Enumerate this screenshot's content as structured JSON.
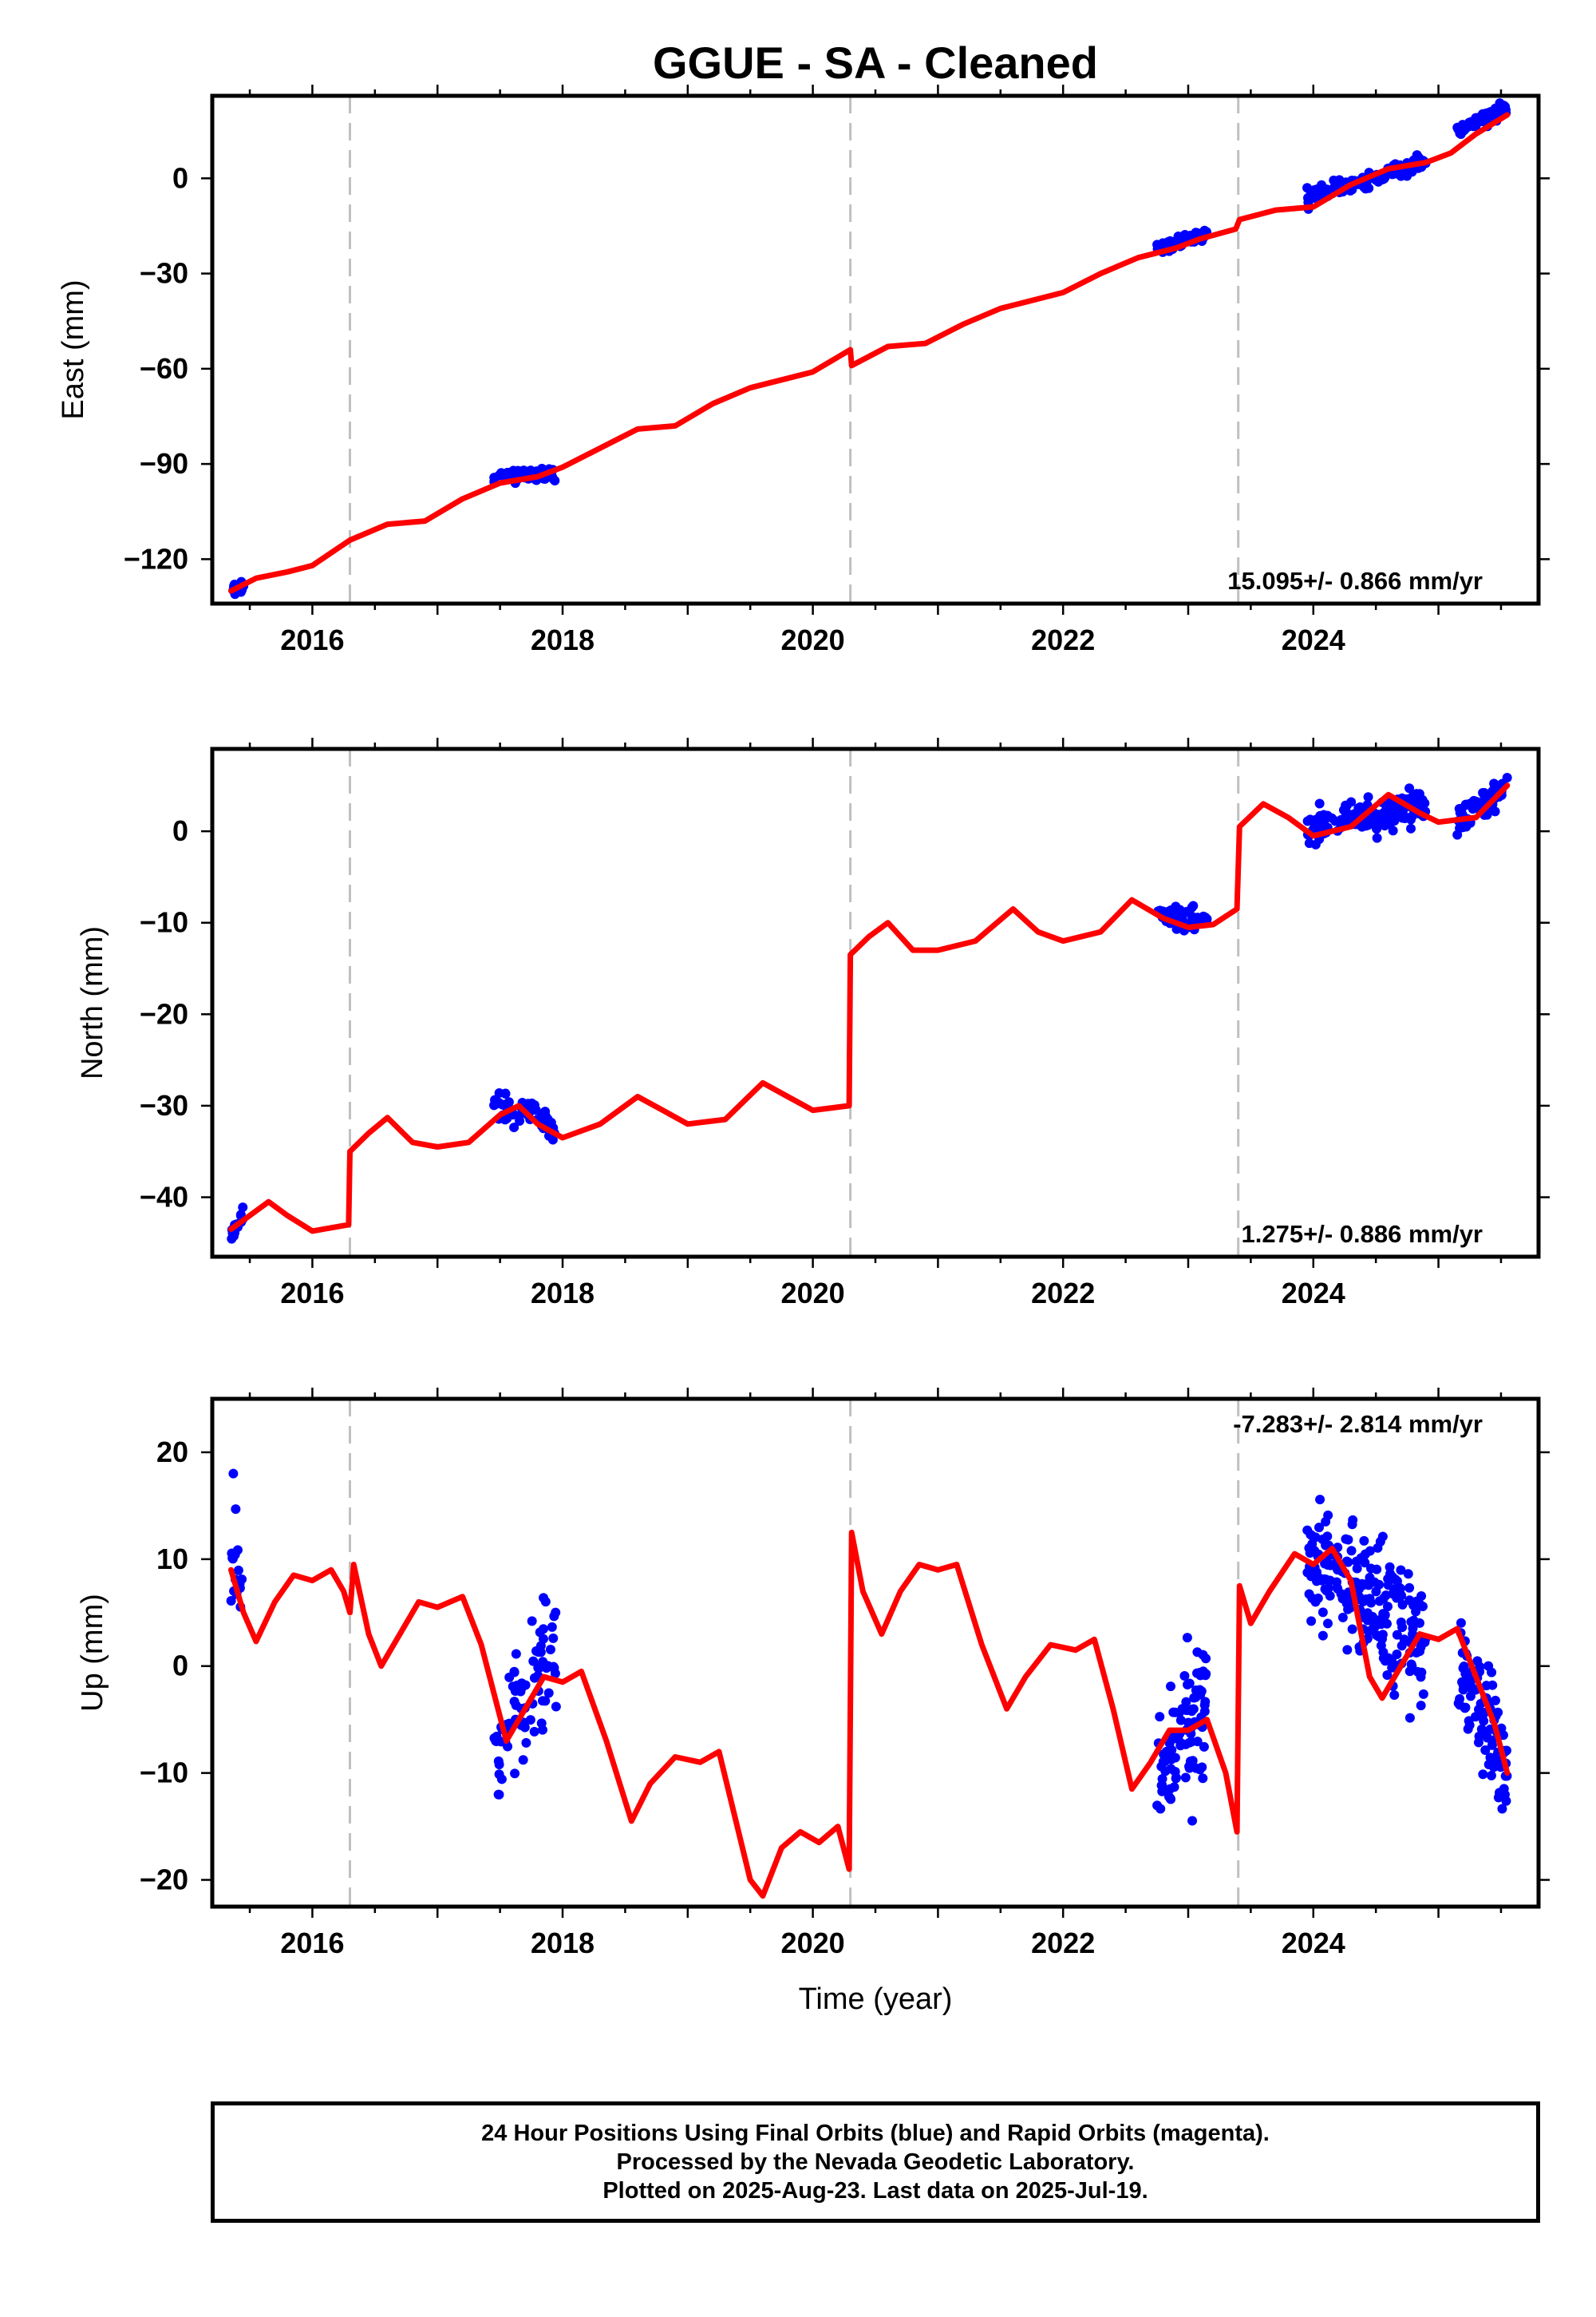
{
  "colors": {
    "data_points": "#0000ff",
    "model_line": "#ff0000",
    "event_lines": "#c0c0c0",
    "frame": "#000000"
  },
  "chart_data": [
    {
      "type": "scatter",
      "title": "GGUE  - SA - Cleaned",
      "xlabel": "",
      "ylabel": "East (mm)",
      "xlim": [
        2015.2,
        2025.8
      ],
      "ylim": [
        -134,
        26
      ],
      "x_ticks": [
        "2016",
        "2018",
        "2020",
        "2022",
        "2024"
      ],
      "y_ticks": [
        "-120",
        "-90",
        "-60",
        "-30",
        "0"
      ],
      "event_lines_x": [
        2016.3,
        2020.3,
        2023.4
      ],
      "rate_annotation": "15.095+/- 0.866 mm/yr",
      "series": [
        {
          "kind": "points",
          "clusters": [
            {
              "x_range": [
                2015.35,
                2015.45
              ],
              "center": [
                -130,
                -128
              ],
              "spread": 2.2,
              "n": 14
            },
            {
              "x_range": [
                2017.45,
                2017.95
              ],
              "center": [
                -94,
                -93
              ],
              "spread": 1.8,
              "n": 60
            },
            {
              "x_range": [
                2022.75,
                2023.15
              ],
              "center": [
                -23,
                -17
              ],
              "spread": 1.8,
              "n": 60
            },
            {
              "x_range": [
                2023.95,
                2024.9
              ],
              "center": [
                -6,
                5
              ],
              "spread": 2.0,
              "n": 150
            },
            {
              "x_range": [
                2025.15,
                2025.55
              ],
              "center": [
                15,
                22
              ],
              "spread": 1.8,
              "n": 70
            }
          ]
        },
        {
          "kind": "line",
          "points": [
            [
              2015.35,
              -130
            ],
            [
              2015.55,
              -126
            ],
            [
              2015.8,
              -124
            ],
            [
              2016.0,
              -122
            ],
            [
              2016.3,
              -114
            ],
            [
              2016.6,
              -109
            ],
            [
              2016.9,
              -108
            ],
            [
              2017.2,
              -101
            ],
            [
              2017.5,
              -96
            ],
            [
              2017.8,
              -94
            ],
            [
              2018.0,
              -91
            ],
            [
              2018.3,
              -85
            ],
            [
              2018.6,
              -79
            ],
            [
              2018.9,
              -78
            ],
            [
              2019.2,
              -71
            ],
            [
              2019.5,
              -66
            ],
            [
              2019.8,
              -63
            ],
            [
              2020.0,
              -61
            ],
            [
              2020.3,
              -54
            ],
            [
              2020.31,
              -59
            ],
            [
              2020.6,
              -53
            ],
            [
              2020.9,
              -52
            ],
            [
              2021.2,
              -46
            ],
            [
              2021.5,
              -41
            ],
            [
              2021.8,
              -38
            ],
            [
              2022.0,
              -36
            ],
            [
              2022.3,
              -30
            ],
            [
              2022.6,
              -25
            ],
            [
              2022.9,
              -22
            ],
            [
              2023.1,
              -19
            ],
            [
              2023.38,
              -16
            ],
            [
              2023.41,
              -13
            ],
            [
              2023.7,
              -10
            ],
            [
              2024.0,
              -9
            ],
            [
              2024.3,
              -2
            ],
            [
              2024.6,
              3
            ],
            [
              2024.9,
              5
            ],
            [
              2025.1,
              8
            ],
            [
              2025.3,
              14
            ],
            [
              2025.55,
              20
            ]
          ]
        }
      ]
    },
    {
      "type": "scatter",
      "title": "",
      "xlabel": "",
      "ylabel": "North (mm)",
      "xlim": [
        2015.2,
        2025.8
      ],
      "ylim": [
        -46.5,
        9
      ],
      "x_ticks": [
        "2016",
        "2018",
        "2020",
        "2022",
        "2024"
      ],
      "y_ticks": [
        "-40",
        "-30",
        "-20",
        "-10",
        "0"
      ],
      "event_lines_x": [
        2016.3,
        2020.3,
        2023.4
      ],
      "rate_annotation": "1.275+/- 0.886 mm/yr",
      "series": [
        {
          "kind": "points",
          "clusters": [
            {
              "x_range": [
                2015.35,
                2015.45
              ],
              "center": [
                -44,
                -42
              ],
              "spread": 1.2,
              "n": 14
            },
            {
              "x_range": [
                2017.45,
                2017.95
              ],
              "center": [
                -30,
                -32
              ],
              "spread": 1.3,
              "n": 60
            },
            {
              "x_range": [
                2022.75,
                2023.15
              ],
              "center": [
                -9,
                -10
              ],
              "spread": 1.3,
              "n": 60
            },
            {
              "x_range": [
                2023.95,
                2024.9
              ],
              "center": [
                0,
                3
              ],
              "spread": 1.6,
              "n": 150
            },
            {
              "x_range": [
                2025.15,
                2025.55
              ],
              "center": [
                1,
                5
              ],
              "spread": 1.4,
              "n": 70
            }
          ]
        },
        {
          "kind": "line",
          "points": [
            [
              2015.35,
              -43.5
            ],
            [
              2015.5,
              -42
            ],
            [
              2015.65,
              -40.5
            ],
            [
              2015.8,
              -42
            ],
            [
              2016.0,
              -43.7
            ],
            [
              2016.29,
              -43
            ],
            [
              2016.3,
              -35
            ],
            [
              2016.45,
              -33
            ],
            [
              2016.6,
              -31.3
            ],
            [
              2016.8,
              -34
            ],
            [
              2017.0,
              -34.5
            ],
            [
              2017.25,
              -34
            ],
            [
              2017.5,
              -31
            ],
            [
              2017.65,
              -30
            ],
            [
              2017.8,
              -32
            ],
            [
              2018.0,
              -33.5
            ],
            [
              2018.3,
              -32
            ],
            [
              2018.6,
              -29
            ],
            [
              2018.8,
              -30.5
            ],
            [
              2019.0,
              -32
            ],
            [
              2019.3,
              -31.5
            ],
            [
              2019.6,
              -27.5
            ],
            [
              2019.8,
              -29
            ],
            [
              2020.0,
              -30.5
            ],
            [
              2020.29,
              -30
            ],
            [
              2020.3,
              -13.5
            ],
            [
              2020.45,
              -11.5
            ],
            [
              2020.6,
              -10
            ],
            [
              2020.8,
              -13
            ],
            [
              2021.0,
              -13
            ],
            [
              2021.3,
              -12
            ],
            [
              2021.6,
              -8.5
            ],
            [
              2021.8,
              -11
            ],
            [
              2022.0,
              -12
            ],
            [
              2022.3,
              -11
            ],
            [
              2022.55,
              -7.5
            ],
            [
              2022.8,
              -9.5
            ],
            [
              2023.0,
              -10.5
            ],
            [
              2023.2,
              -10.2
            ],
            [
              2023.39,
              -8.5
            ],
            [
              2023.41,
              0.5
            ],
            [
              2023.6,
              3
            ],
            [
              2023.8,
              1.5
            ],
            [
              2024.0,
              -0.5
            ],
            [
              2024.3,
              0.5
            ],
            [
              2024.6,
              4
            ],
            [
              2024.85,
              2
            ],
            [
              2025.0,
              1
            ],
            [
              2025.3,
              1.5
            ],
            [
              2025.55,
              5
            ]
          ]
        }
      ]
    },
    {
      "type": "scatter",
      "title": "",
      "xlabel": "Time (year)",
      "ylabel": "Up (mm)",
      "xlim": [
        2015.2,
        2025.8
      ],
      "ylim": [
        -22.5,
        25
      ],
      "x_ticks": [
        "2016",
        "2018",
        "2020",
        "2022",
        "2024"
      ],
      "y_ticks": [
        "-20",
        "-10",
        "0",
        "10",
        "20"
      ],
      "event_lines_x": [
        2016.3,
        2020.3,
        2023.4
      ],
      "rate_annotation": "-7.283+/- 2.814 mm/yr",
      "series": [
        {
          "kind": "points",
          "clusters": [
            {
              "x_range": [
                2015.35,
                2015.45
              ],
              "center": [
                9,
                6
              ],
              "spread": 5.5,
              "n": 16
            },
            {
              "x_range": [
                2017.45,
                2017.95
              ],
              "center": [
                -8,
                2
              ],
              "spread": 5.0,
              "n": 80
            },
            {
              "x_range": [
                2022.75,
                2023.15
              ],
              "center": [
                -10,
                -3
              ],
              "spread": 6.0,
              "n": 100
            },
            {
              "x_range": [
                2023.95,
                2024.9
              ],
              "center": [
                10,
                2
              ],
              "spread": 5.5,
              "n": 220
            },
            {
              "x_range": [
                2025.15,
                2025.55
              ],
              "center": [
                0,
                -10
              ],
              "spread": 5.0,
              "n": 90
            }
          ]
        },
        {
          "kind": "line",
          "points": [
            [
              2015.35,
              9
            ],
            [
              2015.45,
              5
            ],
            [
              2015.55,
              2.3
            ],
            [
              2015.7,
              6
            ],
            [
              2015.85,
              8.5
            ],
            [
              2016.0,
              8
            ],
            [
              2016.15,
              9
            ],
            [
              2016.25,
              7
            ],
            [
              2016.3,
              5
            ],
            [
              2016.33,
              9.5
            ],
            [
              2016.45,
              3
            ],
            [
              2016.55,
              0
            ],
            [
              2016.65,
              2
            ],
            [
              2016.85,
              6
            ],
            [
              2017.0,
              5.5
            ],
            [
              2017.2,
              6.5
            ],
            [
              2017.35,
              2
            ],
            [
              2017.55,
              -7
            ],
            [
              2017.7,
              -4
            ],
            [
              2017.85,
              -1
            ],
            [
              2018.0,
              -1.5
            ],
            [
              2018.15,
              -0.5
            ],
            [
              2018.35,
              -7
            ],
            [
              2018.55,
              -14.5
            ],
            [
              2018.7,
              -11
            ],
            [
              2018.9,
              -8.5
            ],
            [
              2019.1,
              -9
            ],
            [
              2019.25,
              -8
            ],
            [
              2019.5,
              -20
            ],
            [
              2019.6,
              -21.5
            ],
            [
              2019.75,
              -17
            ],
            [
              2019.9,
              -15.5
            ],
            [
              2020.05,
              -16.5
            ],
            [
              2020.2,
              -15
            ],
            [
              2020.29,
              -19
            ],
            [
              2020.31,
              12.5
            ],
            [
              2020.4,
              7
            ],
            [
              2020.55,
              3
            ],
            [
              2020.7,
              7
            ],
            [
              2020.85,
              9.5
            ],
            [
              2021.0,
              9
            ],
            [
              2021.15,
              9.5
            ],
            [
              2021.35,
              2
            ],
            [
              2021.55,
              -4
            ],
            [
              2021.7,
              -1
            ],
            [
              2021.9,
              2
            ],
            [
              2022.1,
              1.5
            ],
            [
              2022.25,
              2.5
            ],
            [
              2022.4,
              -4
            ],
            [
              2022.55,
              -11.5
            ],
            [
              2022.7,
              -9
            ],
            [
              2022.85,
              -6
            ],
            [
              2023.0,
              -6
            ],
            [
              2023.15,
              -5
            ],
            [
              2023.3,
              -10
            ],
            [
              2023.39,
              -15.5
            ],
            [
              2023.41,
              7.5
            ],
            [
              2023.5,
              4
            ],
            [
              2023.65,
              7
            ],
            [
              2023.85,
              10.5
            ],
            [
              2024.0,
              9.5
            ],
            [
              2024.15,
              11
            ],
            [
              2024.3,
              8
            ],
            [
              2024.45,
              -1
            ],
            [
              2024.55,
              -3
            ],
            [
              2024.7,
              0
            ],
            [
              2024.85,
              3
            ],
            [
              2025.0,
              2.5
            ],
            [
              2025.15,
              3.5
            ],
            [
              2025.3,
              -1
            ],
            [
              2025.45,
              -5.5
            ],
            [
              2025.55,
              -10
            ]
          ]
        }
      ]
    }
  ],
  "footer": {
    "line1": "24 Hour Positions Using Final Orbits (blue) and Rapid Orbits (magenta).",
    "line2": "Processed by the Nevada Geodetic Laboratory.",
    "line3": "Plotted on 2025-Aug-23. Last data on 2025-Jul-19."
  }
}
